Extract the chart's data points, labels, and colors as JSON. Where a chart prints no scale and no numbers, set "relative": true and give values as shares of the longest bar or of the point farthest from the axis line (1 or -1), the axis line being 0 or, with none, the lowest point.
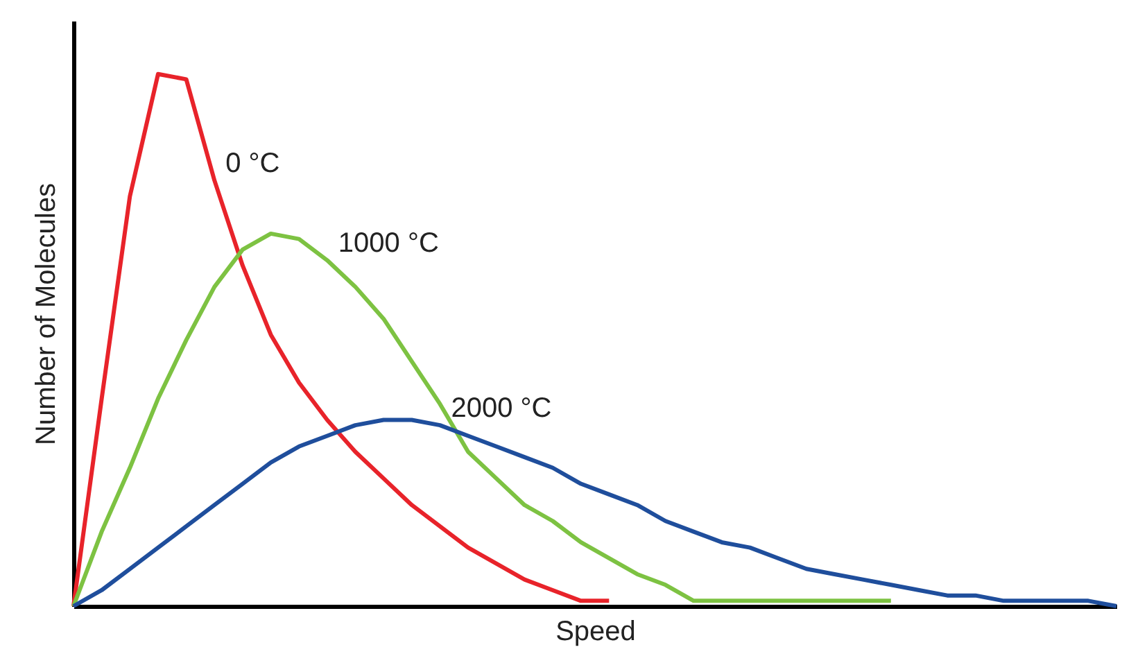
{
  "chart_data": {
    "type": "line",
    "relative": true,
    "xlabel": "Speed",
    "ylabel": "Number of Molecules",
    "tick_labels": false,
    "grid": false,
    "categories": [
      null,
      null,
      null,
      null,
      null,
      null,
      null,
      null,
      null,
      null,
      null,
      null,
      null,
      null,
      null,
      null,
      null,
      null,
      null,
      null,
      null,
      null,
      null,
      null,
      null,
      null,
      null,
      null,
      null,
      null,
      null,
      null,
      null,
      null,
      null,
      null,
      null,
      null
    ],
    "series": [
      {
        "name": "0 °C",
        "color": "#e8232a",
        "values": [
          0,
          0.39,
          0.77,
          1.0,
          0.99,
          0.8,
          0.64,
          0.51,
          0.42,
          0.35,
          0.29,
          0.24,
          0.19,
          0.15,
          0.11,
          0.08,
          0.05,
          0.03,
          0.01,
          0.01,
          null,
          null,
          null,
          null,
          null,
          null,
          null,
          null,
          null,
          null,
          null,
          null,
          null,
          null,
          null,
          null,
          null,
          null
        ]
      },
      {
        "name": "1000 °C",
        "color": "#7dc242",
        "values": [
          0,
          0.14,
          0.26,
          0.39,
          0.5,
          0.6,
          0.67,
          0.7,
          0.69,
          0.65,
          0.6,
          0.54,
          0.46,
          0.38,
          0.29,
          0.24,
          0.19,
          0.16,
          0.12,
          0.09,
          0.06,
          0.04,
          0.01,
          0.01,
          0.01,
          0.01,
          0.01,
          0.01,
          0.01,
          0.01,
          null,
          null,
          null,
          null,
          null,
          null,
          null,
          null
        ]
      },
      {
        "name": "2000 °C",
        "color": "#1f4e9c",
        "values": [
          0,
          0.03,
          0.07,
          0.11,
          0.15,
          0.19,
          0.23,
          0.27,
          0.3,
          0.32,
          0.34,
          0.35,
          0.35,
          0.34,
          0.32,
          0.3,
          0.28,
          0.26,
          0.23,
          0.21,
          0.19,
          0.16,
          0.14,
          0.12,
          0.11,
          0.09,
          0.07,
          0.06,
          0.05,
          0.04,
          0.03,
          0.02,
          0.02,
          0.01,
          0.01,
          0.01,
          0.01,
          0
        ]
      }
    ]
  }
}
